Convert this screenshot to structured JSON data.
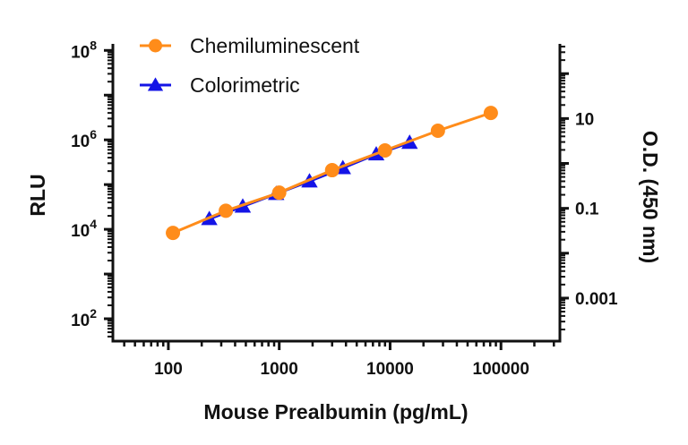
{
  "chart_data": {
    "type": "scatter",
    "xlabel": "Mouse Prealbumin (pg/mL)",
    "ylabel": "RLU",
    "y2label": "O.D. (450 nm)",
    "xscale": "log",
    "yscale": "log",
    "y2scale": "log",
    "xlim": [
      31.6,
      340000
    ],
    "ylim": [
      31.6,
      140000000
    ],
    "y2lim": [
      0.00011,
      460
    ],
    "x_ticks": [
      "100",
      "1000",
      "10000",
      "100000"
    ],
    "y_ticks": [
      {
        "base": "10",
        "exp": "2"
      },
      {
        "base": "10",
        "exp": "4"
      },
      {
        "base": "10",
        "exp": "6"
      },
      {
        "base": "10",
        "exp": "8"
      }
    ],
    "y2_ticks": [
      "0.001",
      "0.1",
      "10"
    ],
    "grid": false,
    "legend_placement": "top-left",
    "series": [
      {
        "name": "Chemiluminescent",
        "axis": "left",
        "marker": "circle",
        "color": "#FF8C1A",
        "x": [
          110,
          330,
          1000,
          3000,
          9000,
          27000,
          81000
        ],
        "y": [
          8300,
          26000,
          66000,
          210000,
          580000,
          1600000,
          4000000
        ]
      },
      {
        "name": "Colorimetric",
        "axis": "right",
        "marker": "triangle",
        "color": "#1414E6",
        "x": [
          234,
          469,
          938,
          1875,
          3750,
          7500,
          15000
        ],
        "y": [
          0.058,
          0.11,
          0.21,
          0.4,
          0.79,
          1.6,
          2.9
        ]
      }
    ]
  }
}
